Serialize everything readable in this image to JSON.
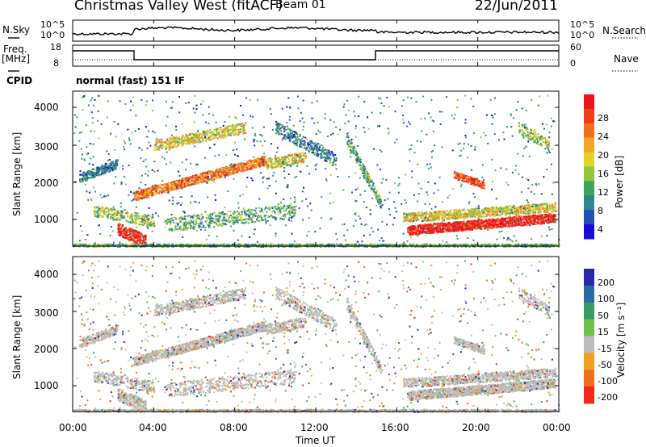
{
  "header": {
    "station": "Christmas Valley West (fitACF)",
    "beam": "Beam 01",
    "date": "22/Jun/2011"
  },
  "top_panels": {
    "nsky_label": "N.Sky",
    "nsky_ticks": [
      "10^5",
      "10^0"
    ],
    "nsearch_label": "N.Search",
    "nsearch_ticks": [
      "10^5",
      "10^0"
    ],
    "freq_label_1": "Freq.",
    "freq_label_2": "[MHz]",
    "freq_ticks": [
      "18",
      "8"
    ],
    "nave_label": "Nave",
    "nave_ticks": [
      "60",
      "0"
    ],
    "cpid_label": "CPID",
    "cpid_value": "normal (fast) 151 IF"
  },
  "axes": {
    "x_label": "Time UT",
    "x_ticks": [
      "00:00",
      "04:00",
      "08:00",
      "12:00",
      "16:00",
      "20:00",
      "00:00"
    ],
    "y_label": "Slant Range [km]",
    "y_ticks": [
      "4000",
      "3000",
      "2000",
      "1000"
    ]
  },
  "colorbars": {
    "power": {
      "label": "Power [dB]",
      "ticks": [
        "28",
        "24",
        "20",
        "16",
        "12",
        "8",
        "4"
      ],
      "colors": [
        "#1a0ad6",
        "#2450b4",
        "#2e8a8a",
        "#3fa35a",
        "#8ec63f",
        "#e2d22e",
        "#f3a428",
        "#f07022",
        "#ee3d1b",
        "#e8141a"
      ]
    },
    "velocity": {
      "label": "Velocity [m s⁻¹]",
      "ticks": [
        "200",
        "100",
        "50",
        "15",
        "-15",
        "-50",
        "-100",
        "-200"
      ],
      "colors": [
        "#2a2aa8",
        "#2a6aa0",
        "#3b9a6a",
        "#6fc14a",
        "#bcbcbc",
        "#f0a020",
        "#f07020",
        "#ee2a18"
      ]
    }
  },
  "chart_data": [
    {
      "type": "line",
      "title": "N.Sky / N.Search",
      "x": [
        "00:00",
        "04:00",
        "08:00",
        "12:00",
        "16:00",
        "20:00",
        "00:00"
      ],
      "series": [
        {
          "name": "N.Sky",
          "values": [
            1000.0,
            3000.0,
            2000.0,
            2000.0,
            1000.0,
            800.0,
            800.0
          ]
        }
      ]
    },
    {
      "type": "line",
      "title": "Freq. / Nave",
      "x": [
        "00:00",
        "02:50",
        "03:00",
        "15:00",
        "15:10",
        "00:00"
      ],
      "series": [
        {
          "name": "Freq.",
          "values": [
            18,
            18,
            8,
            8,
            18,
            18
          ]
        },
        {
          "name": "Nave",
          "values": [
            9,
            9,
            9,
            9,
            9,
            9
          ]
        }
      ]
    },
    {
      "type": "heatmap",
      "title": "Power [dB]",
      "xlabel": "Time UT",
      "ylabel": "Slant Range [km]",
      "xlim": [
        0,
        24
      ],
      "ylim": [
        200,
        4500
      ],
      "zlim": [
        0,
        30
      ]
    },
    {
      "type": "heatmap",
      "title": "Velocity [m s⁻¹]",
      "xlabel": "Time UT",
      "ylabel": "Slant Range [km]",
      "xlim": [
        0,
        24
      ],
      "ylim": [
        200,
        4500
      ],
      "zlim": [
        -200,
        200
      ]
    }
  ]
}
